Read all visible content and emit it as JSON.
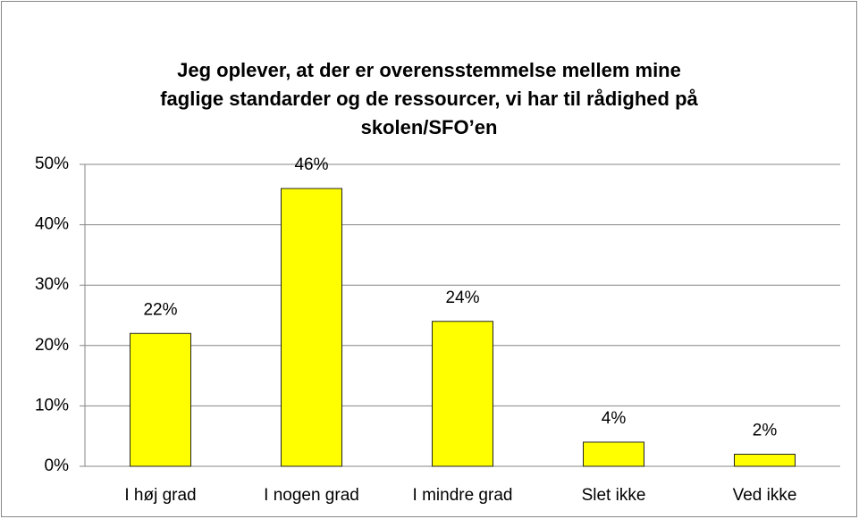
{
  "chart_data": {
    "type": "bar",
    "title": [
      "Jeg oplever, at der er overensstemmelse mellem mine",
      "faglige standarder og de ressourcer, vi har til rådighed på",
      "skolen/SFO’en"
    ],
    "categories": [
      "I høj grad",
      "I nogen grad",
      "I mindre grad",
      "Slet ikke",
      "Ved ikke"
    ],
    "values": [
      22,
      46,
      24,
      4,
      2
    ],
    "value_labels": [
      "22%",
      "46%",
      "24%",
      "4%",
      "2%"
    ],
    "color": "#ffff00",
    "ylim": [
      0,
      50
    ],
    "yticks": [
      {
        "value": 0,
        "label": "0%"
      },
      {
        "value": 10,
        "label": "10%"
      },
      {
        "value": 20,
        "label": "20%"
      },
      {
        "value": 30,
        "label": "30%"
      },
      {
        "value": 40,
        "label": "40%"
      },
      {
        "value": 50,
        "label": "50%"
      }
    ],
    "grid": true
  }
}
